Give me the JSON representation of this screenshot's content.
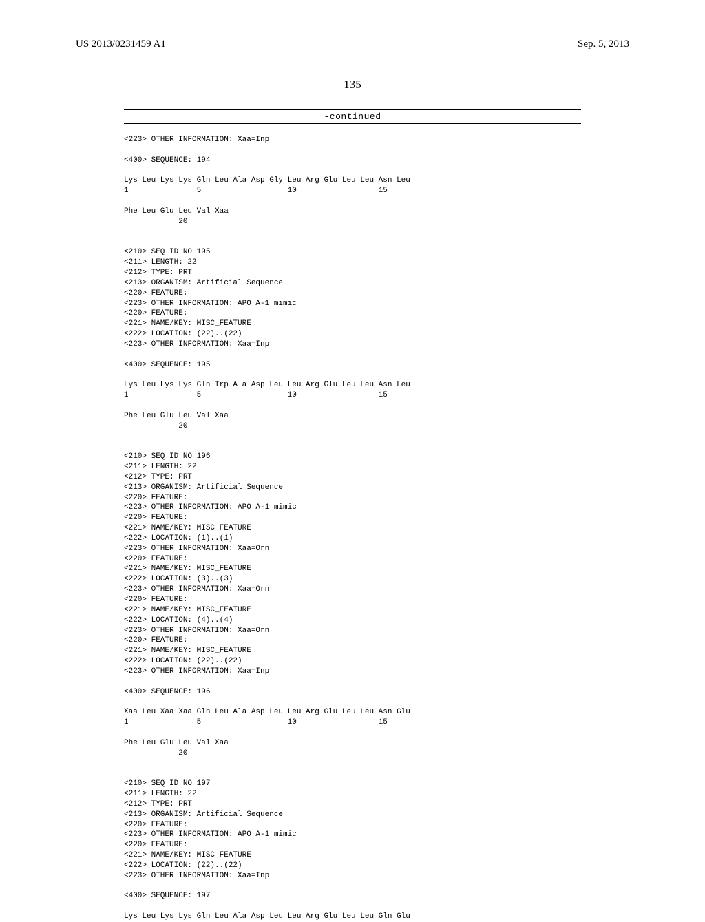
{
  "header": {
    "publication_number": "US 2013/0231459 A1",
    "publication_date": "Sep. 5, 2013"
  },
  "page_number": "135",
  "continued_label": "-continued",
  "sequences": [
    {
      "pre_lines": [
        "<223> OTHER INFORMATION: Xaa=Inp"
      ],
      "seq_label": "<400> SEQUENCE: 194",
      "residues_line1": "Lys Leu Lys Lys Gln Leu Ala Asp Gly Leu Arg Glu Leu Leu Asn Leu",
      "numbers_line1": "1               5                   10                  15",
      "residues_line2": "Phe Leu Glu Leu Val Xaa",
      "numbers_line2": "            20"
    },
    {
      "meta_lines": [
        "<210> SEQ ID NO 195",
        "<211> LENGTH: 22",
        "<212> TYPE: PRT",
        "<213> ORGANISM: Artificial Sequence",
        "<220> FEATURE:",
        "<223> OTHER INFORMATION: APO A-1 mimic",
        "<220> FEATURE:",
        "<221> NAME/KEY: MISC_FEATURE",
        "<222> LOCATION: (22)..(22)",
        "<223> OTHER INFORMATION: Xaa=Inp"
      ],
      "seq_label": "<400> SEQUENCE: 195",
      "residues_line1": "Lys Leu Lys Lys Gln Trp Ala Asp Leu Leu Arg Glu Leu Leu Asn Leu",
      "numbers_line1": "1               5                   10                  15",
      "residues_line2": "Phe Leu Glu Leu Val Xaa",
      "numbers_line2": "            20"
    },
    {
      "meta_lines": [
        "<210> SEQ ID NO 196",
        "<211> LENGTH: 22",
        "<212> TYPE: PRT",
        "<213> ORGANISM: Artificial Sequence",
        "<220> FEATURE:",
        "<223> OTHER INFORMATION: APO A-1 mimic",
        "<220> FEATURE:",
        "<221> NAME/KEY: MISC_FEATURE",
        "<222> LOCATION: (1)..(1)",
        "<223> OTHER INFORMATION: Xaa=Orn",
        "<220> FEATURE:",
        "<221> NAME/KEY: MISC_FEATURE",
        "<222> LOCATION: (3)..(3)",
        "<223> OTHER INFORMATION: Xaa=Orn",
        "<220> FEATURE:",
        "<221> NAME/KEY: MISC_FEATURE",
        "<222> LOCATION: (4)..(4)",
        "<223> OTHER INFORMATION: Xaa=Orn",
        "<220> FEATURE:",
        "<221> NAME/KEY: MISC_FEATURE",
        "<222> LOCATION: (22)..(22)",
        "<223> OTHER INFORMATION: Xaa=Inp"
      ],
      "seq_label": "<400> SEQUENCE: 196",
      "residues_line1": "Xaa Leu Xaa Xaa Gln Leu Ala Asp Leu Leu Arg Glu Leu Leu Asn Glu",
      "numbers_line1": "1               5                   10                  15",
      "residues_line2": "Phe Leu Glu Leu Val Xaa",
      "numbers_line2": "            20"
    },
    {
      "meta_lines": [
        "<210> SEQ ID NO 197",
        "<211> LENGTH: 22",
        "<212> TYPE: PRT",
        "<213> ORGANISM: Artificial Sequence",
        "<220> FEATURE:",
        "<223> OTHER INFORMATION: APO A-1 mimic",
        "<220> FEATURE:",
        "<221> NAME/KEY: MISC_FEATURE",
        "<222> LOCATION: (22)..(22)",
        "<223> OTHER INFORMATION: Xaa=Inp"
      ],
      "seq_label": "<400> SEQUENCE: 197",
      "residues_line1": "Lys Leu Lys Lys Gln Leu Ala Asp Leu Leu Arg Glu Leu Leu Gln Glu",
      "numbers_line1": "",
      "residues_line2": "",
      "numbers_line2": ""
    }
  ]
}
